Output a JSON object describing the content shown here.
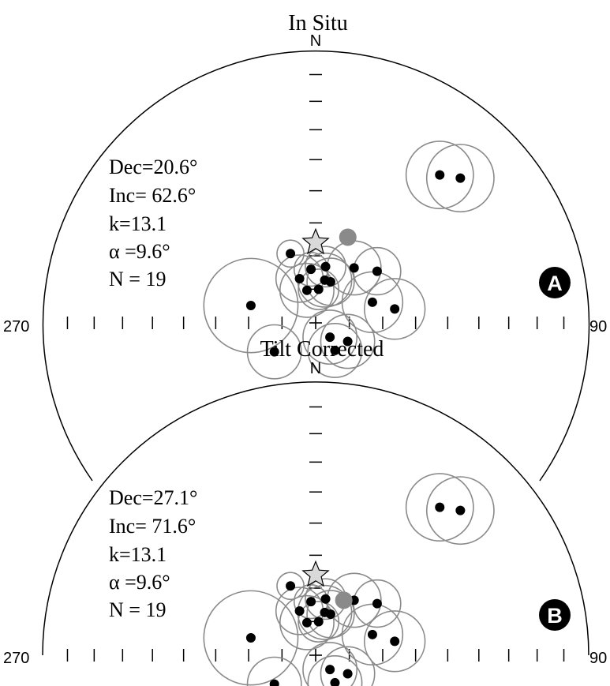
{
  "panels": [
    {
      "id": "a",
      "title": "In Situ",
      "north_label": "N",
      "west_label": "270",
      "east_label": "90",
      "panel_letter": "A",
      "stats": {
        "dec": "Dec=20.6°",
        "inc": "Inc= 62.6°",
        "k": "k=13.1",
        "alpha": "α =9.6°",
        "n": "N = 19"
      },
      "mean_direction": {
        "dec": 20.6,
        "inc": 62.6
      },
      "reference_direction": {
        "dec": 0,
        "inc": 66
      },
      "site_means": [
        {
          "dec": 40,
          "inc": 30,
          "a95": 10
        },
        {
          "dec": 45,
          "inc": 26,
          "a95": 10
        },
        {
          "dec": -20,
          "inc": 68,
          "a95": 4
        },
        {
          "dec": -5,
          "inc": 74,
          "a95": 5
        },
        {
          "dec": 10,
          "inc": 73,
          "a95": 6
        },
        {
          "dec": 35,
          "inc": 70,
          "a95": 8
        },
        {
          "dec": 50,
          "inc": 66,
          "a95": 7
        },
        {
          "dec": -15,
          "inc": 80,
          "a95": 8
        },
        {
          "dec": 5,
          "inc": 80,
          "a95": 6
        },
        {
          "dec": 20,
          "inc": 77,
          "a95": 7
        },
        {
          "dec": -20,
          "inc": 76,
          "a95": 7
        },
        {
          "dec": 70,
          "inc": 72,
          "a95": 9
        },
        {
          "dec": 80,
          "inc": 66,
          "a95": 9
        },
        {
          "dec": 135,
          "inc": 84,
          "a95": 8
        },
        {
          "dec": 120,
          "inc": 79,
          "a95": 8
        },
        {
          "dec": 145,
          "inc": 80,
          "a95": 8
        },
        {
          "dec": -75,
          "inc": 70,
          "a95": 14
        },
        {
          "dec": -125,
          "inc": 75,
          "a95": 8
        },
        {
          "dec": 12,
          "inc": 77,
          "a95": 8
        }
      ]
    },
    {
      "id": "b",
      "title": "Tilt Corrected",
      "north_label": "N",
      "west_label": "270",
      "east_label": "90",
      "panel_letter": "B",
      "stats": {
        "dec": "Dec=27.1°",
        "inc": "Inc= 71.6°",
        "k": "k=13.1",
        "alpha": "α =9.6°",
        "n": "N = 19"
      },
      "mean_direction": {
        "dec": 27.1,
        "inc": 71.6
      },
      "reference_direction": {
        "dec": 0,
        "inc": 66
      },
      "site_means": [
        {
          "dec": 40,
          "inc": 30,
          "a95": 10
        },
        {
          "dec": 45,
          "inc": 26,
          "a95": 10
        },
        {
          "dec": -20,
          "inc": 68,
          "a95": 4
        },
        {
          "dec": -5,
          "inc": 74,
          "a95": 5
        },
        {
          "dec": 10,
          "inc": 73,
          "a95": 6
        },
        {
          "dec": 35,
          "inc": 70,
          "a95": 8
        },
        {
          "dec": 50,
          "inc": 66,
          "a95": 7
        },
        {
          "dec": -15,
          "inc": 80,
          "a95": 8
        },
        {
          "dec": 5,
          "inc": 80,
          "a95": 6
        },
        {
          "dec": 20,
          "inc": 77,
          "a95": 7
        },
        {
          "dec": -20,
          "inc": 76,
          "a95": 7
        },
        {
          "dec": 70,
          "inc": 72,
          "a95": 9
        },
        {
          "dec": 80,
          "inc": 66,
          "a95": 9
        },
        {
          "dec": 135,
          "inc": 84,
          "a95": 8
        },
        {
          "dec": 120,
          "inc": 79,
          "a95": 8
        },
        {
          "dec": 145,
          "inc": 80,
          "a95": 8
        },
        {
          "dec": -75,
          "inc": 70,
          "a95": 14
        },
        {
          "dec": -125,
          "inc": 75,
          "a95": 8
        },
        {
          "dec": 12,
          "inc": 77,
          "a95": 8
        }
      ]
    }
  ],
  "colors": {
    "outline": "#000000",
    "circle": "#8a8a8a",
    "mean": "#8a8a8a",
    "star_fill": "#d9d9d9",
    "dot": "#000000",
    "badge_text": "#ffffff"
  }
}
